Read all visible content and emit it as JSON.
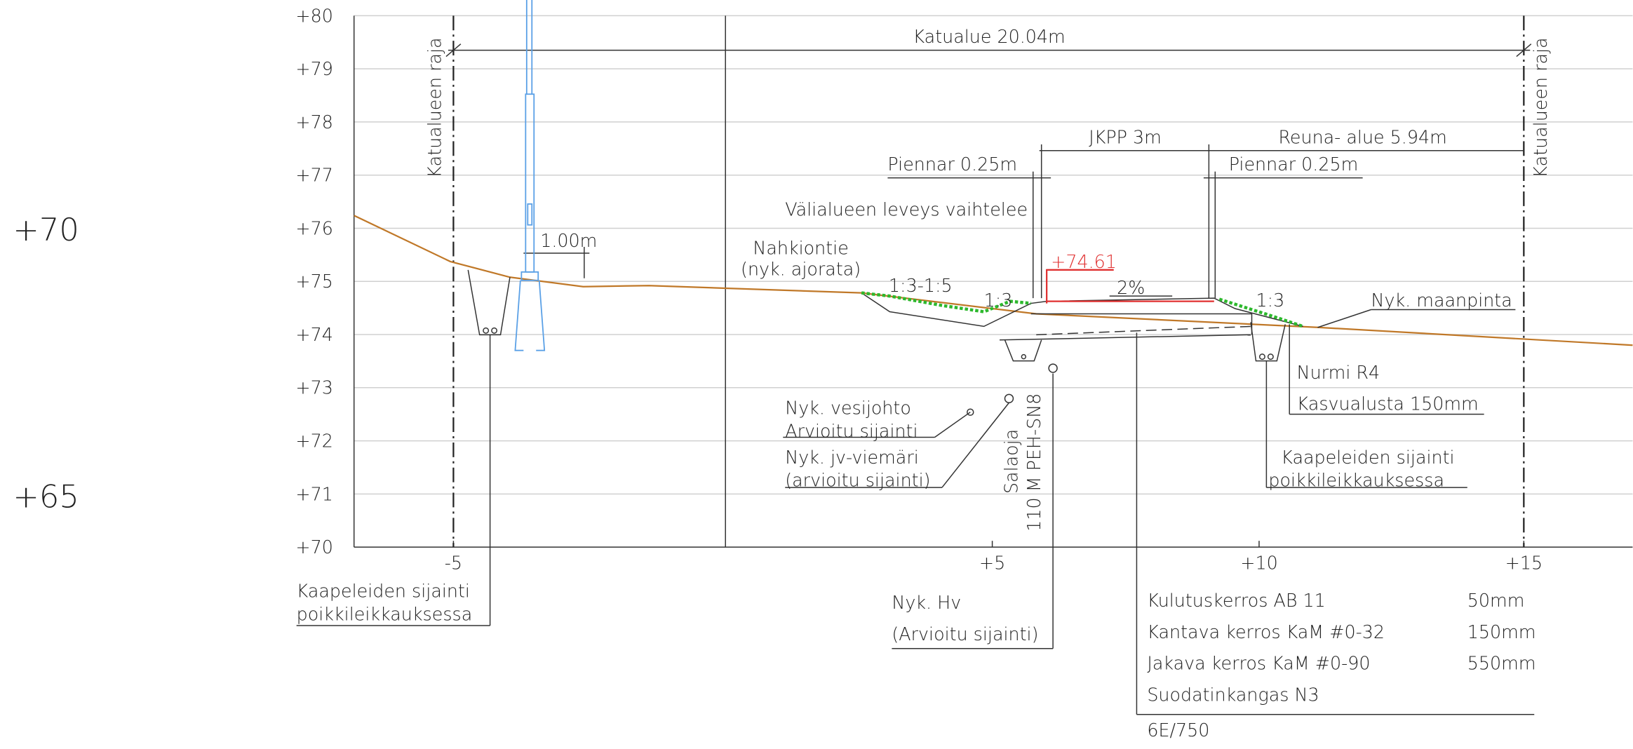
{
  "left_labels": [
    "+70",
    "+65"
  ],
  "elevation_labels": [
    "+80",
    "+79",
    "+78",
    "+77",
    "+76",
    "+75",
    "+74",
    "+73",
    "+72",
    "+71",
    "+70"
  ],
  "station_labels": [
    "-5",
    "+5",
    "+10",
    "+15"
  ],
  "annotations": {
    "street_area": "Katualue 20.04m",
    "boundary_left": "Katualueen raja",
    "boundary_right": "Katualueen raja",
    "jkpp": "JKPP 3m",
    "edge_area": "Reuna- alue 5.94m",
    "shoulder_left": "Piennar 0.25m",
    "shoulder_right": "Piennar 0.25m",
    "median": "Välialueen leveys vaihtelee",
    "offset": "1.00m",
    "road_name": "Nahkiontie",
    "road_note": "(nyk. ajorata)",
    "elevation": "+74.61",
    "slope_a": "1:3-1:5",
    "slope_b": "1:3",
    "crossfall": "2%",
    "slope_c": "1:3",
    "ground": "Nyk. maanpinta",
    "grass": "Nurmi R4",
    "topsoil": "Kasvualusta 150mm",
    "water_1": "Nyk. vesijohto",
    "water_2": "Arvioitu sijainti",
    "sewer_1": "Nyk. jv-viemäri",
    "sewer_2": "(arvioitu sijainti)",
    "drain_1": "Salaoja",
    "drain_2": "110 M PEH-SN8",
    "cable_right_1": "Kaapeleiden sijainti",
    "cable_right_2": "poikkileikkauksessa",
    "cable_left_1": "Kaapeleiden sijainti",
    "cable_left_2": "poikkileikkauksessa",
    "hv_1": "Nyk. Hv",
    "hv_2": "(Arvioitu sijainti)"
  },
  "layers": [
    {
      "name": "Kulutuskerros AB 11",
      "thickness": "50mm"
    },
    {
      "name": "Kantava kerros KaM #0-32",
      "thickness": "150mm"
    },
    {
      "name": "Jakava kerros KaM #0-90",
      "thickness": "550mm"
    },
    {
      "name": "Suodatinkangas N3"
    }
  ],
  "code": "6E/750"
}
